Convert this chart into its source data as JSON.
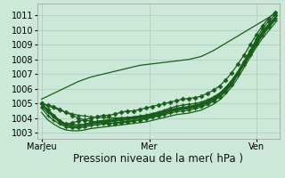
{
  "bg_color": "#cce8d8",
  "grid_color": "#aaccb8",
  "line_color": "#1a5c1a",
  "xlabel": "Pression niveau de la mer( hPa )",
  "xlabel_fontsize": 8.5,
  "yticks": [
    1003,
    1004,
    1005,
    1006,
    1007,
    1008,
    1009,
    1010,
    1011
  ],
  "ylim": [
    1002.6,
    1011.8
  ],
  "xtick_labels": [
    "MarJeu",
    "Mer",
    "Ven"
  ],
  "xtick_positions": [
    0,
    48,
    96
  ],
  "xlim": [
    -2,
    106
  ],
  "tick_fontsize": 7,
  "series": [
    {
      "y": [
        1005.0,
        1004.6,
        1004.2,
        1003.8,
        1003.6,
        1003.7,
        1003.8,
        1003.9,
        1004.0,
        1004.1,
        1004.2,
        1004.2,
        1004.3,
        1004.4,
        1004.5,
        1004.5,
        1004.6,
        1004.7,
        1004.8,
        1004.9,
        1005.0,
        1005.1,
        1005.2,
        1005.3,
        1005.35,
        1005.4,
        1005.5,
        1005.7,
        1005.9,
        1006.2,
        1006.6,
        1007.1,
        1007.7,
        1008.3,
        1009.0,
        1009.7,
        1010.3,
        1010.8,
        1011.2
      ],
      "marker": "diamond",
      "lw": 0.9
    },
    {
      "y": [
        1005.0,
        1004.6,
        1004.2,
        1003.85,
        1003.6,
        1003.55,
        1003.55,
        1003.6,
        1003.7,
        1003.8,
        1003.85,
        1003.9,
        1003.95,
        1004.0,
        1004.05,
        1004.1,
        1004.15,
        1004.2,
        1004.3,
        1004.4,
        1004.5,
        1004.6,
        1004.7,
        1004.75,
        1004.8,
        1004.9,
        1005.0,
        1005.2,
        1005.4,
        1005.7,
        1006.1,
        1006.6,
        1007.2,
        1007.9,
        1008.6,
        1009.3,
        1009.9,
        1010.4,
        1010.85
      ],
      "marker": "none",
      "lw": 0.9
    },
    {
      "y": [
        1005.0,
        1004.5,
        1004.1,
        1003.7,
        1003.5,
        1003.45,
        1003.45,
        1003.5,
        1003.6,
        1003.7,
        1003.75,
        1003.8,
        1003.85,
        1003.9,
        1003.95,
        1004.0,
        1004.05,
        1004.1,
        1004.2,
        1004.3,
        1004.4,
        1004.5,
        1004.6,
        1004.65,
        1004.7,
        1004.8,
        1004.9,
        1005.1,
        1005.3,
        1005.6,
        1006.0,
        1006.5,
        1007.1,
        1007.8,
        1008.5,
        1009.2,
        1009.8,
        1010.3,
        1010.8
      ],
      "marker": "plus",
      "lw": 0.9
    },
    {
      "y": [
        1005.0,
        1004.5,
        1004.1,
        1003.7,
        1003.5,
        1003.4,
        1003.4,
        1003.5,
        1003.6,
        1003.65,
        1003.7,
        1003.75,
        1003.8,
        1003.85,
        1003.9,
        1003.95,
        1004.0,
        1004.05,
        1004.15,
        1004.25,
        1004.35,
        1004.45,
        1004.55,
        1004.6,
        1004.65,
        1004.75,
        1004.85,
        1005.05,
        1005.25,
        1005.55,
        1005.95,
        1006.45,
        1007.05,
        1007.75,
        1008.45,
        1009.15,
        1009.75,
        1010.25,
        1010.75
      ],
      "marker": "none",
      "lw": 0.9
    },
    {
      "y": [
        1004.7,
        1004.2,
        1003.85,
        1003.6,
        1003.4,
        1003.35,
        1003.35,
        1003.4,
        1003.5,
        1003.55,
        1003.6,
        1003.65,
        1003.7,
        1003.75,
        1003.8,
        1003.85,
        1003.9,
        1003.95,
        1004.05,
        1004.15,
        1004.25,
        1004.35,
        1004.45,
        1004.5,
        1004.55,
        1004.65,
        1004.75,
        1004.95,
        1005.15,
        1005.45,
        1005.85,
        1006.35,
        1006.95,
        1007.65,
        1008.35,
        1009.05,
        1009.65,
        1010.15,
        1010.65
      ],
      "marker": "plus",
      "lw": 0.9
    },
    {
      "y": [
        1004.4,
        1003.9,
        1003.6,
        1003.35,
        1003.2,
        1003.15,
        1003.15,
        1003.2,
        1003.3,
        1003.35,
        1003.4,
        1003.45,
        1003.5,
        1003.55,
        1003.6,
        1003.65,
        1003.7,
        1003.75,
        1003.85,
        1003.95,
        1004.05,
        1004.15,
        1004.25,
        1004.3,
        1004.35,
        1004.45,
        1004.55,
        1004.75,
        1004.95,
        1005.25,
        1005.65,
        1006.15,
        1006.75,
        1007.45,
        1008.15,
        1008.85,
        1009.45,
        1009.95,
        1010.45
      ],
      "marker": "none",
      "lw": 0.9
    },
    {
      "y": [
        1004.8,
        1004.4,
        1004.1,
        1003.8,
        1003.6,
        1003.55,
        1003.55,
        1003.6,
        1003.7,
        1003.75,
        1003.8,
        1003.85,
        1003.9,
        1003.95,
        1004.0,
        1004.05,
        1004.1,
        1004.15,
        1004.25,
        1004.35,
        1004.45,
        1004.55,
        1004.65,
        1004.7,
        1004.75,
        1004.85,
        1004.95,
        1005.15,
        1005.35,
        1005.65,
        1006.05,
        1006.55,
        1007.15,
        1007.85,
        1008.55,
        1009.25,
        1009.85,
        1010.35,
        1010.85
      ],
      "marker": "plus",
      "lw": 0.9
    },
    {
      "y": [
        1005.0,
        1004.9,
        1004.8,
        1004.6,
        1004.4,
        1004.2,
        1004.0,
        1003.9,
        1003.8,
        1003.75,
        1003.7,
        1003.65,
        1003.65,
        1003.7,
        1003.75,
        1003.8,
        1003.9,
        1004.0,
        1004.1,
        1004.2,
        1004.3,
        1004.5,
        1004.6,
        1004.7,
        1004.75,
        1004.8,
        1004.9,
        1005.05,
        1005.2,
        1005.45,
        1005.8,
        1006.3,
        1007.0,
        1007.8,
        1008.6,
        1009.4,
        1010.1,
        1010.6,
        1011.0
      ],
      "marker": "diamond",
      "lw": 0.9
    },
    {
      "y": [
        1005.3,
        1005.5,
        1005.7,
        1005.9,
        1006.1,
        1006.3,
        1006.5,
        1006.65,
        1006.8,
        1006.9,
        1007.0,
        1007.1,
        1007.2,
        1007.3,
        1007.4,
        1007.5,
        1007.6,
        1007.65,
        1007.7,
        1007.75,
        1007.8,
        1007.85,
        1007.9,
        1007.95,
        1008.0,
        1008.1,
        1008.2,
        1008.4,
        1008.6,
        1008.85,
        1009.1,
        1009.35,
        1009.6,
        1009.85,
        1010.1,
        1010.35,
        1010.6,
        1010.85,
        1011.1
      ],
      "marker": "none",
      "lw": 0.9
    },
    {
      "y": [
        1005.0,
        1004.85,
        1004.7,
        1004.55,
        1004.4,
        1004.3,
        1004.2,
        1004.15,
        1004.1,
        1004.07,
        1004.05,
        1004.03,
        1004.02,
        1004.03,
        1004.05,
        1004.08,
        1004.15,
        1004.22,
        1004.32,
        1004.42,
        1004.55,
        1004.7,
        1004.82,
        1004.9,
        1004.95,
        1005.0,
        1005.1,
        1005.25,
        1005.45,
        1005.7,
        1006.05,
        1006.5,
        1007.05,
        1007.65,
        1008.3,
        1009.0,
        1009.65,
        1010.2,
        1010.65
      ],
      "marker": "plus",
      "lw": 0.9
    }
  ]
}
